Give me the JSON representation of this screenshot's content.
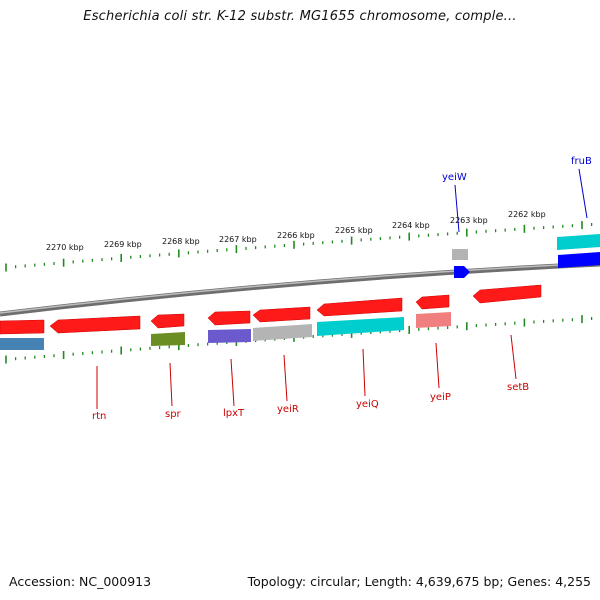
{
  "title": "Escherichia coli str. K-12 substr. MG1655 chromosome, comple...",
  "footer": {
    "accession": "Accession: NC_000913",
    "stats": "Topology: circular; Length: 4,639,675 bp; Genes: 4,255"
  },
  "scale_ticks": [
    "2270 kbp",
    "2269 kbp",
    "2268 kbp",
    "2267 kbp",
    "2266 kbp",
    "2265 kbp",
    "2264 kbp",
    "2263 kbp",
    "2262 kbp"
  ],
  "gene_labels": [
    "yeiW",
    "fruB",
    "rtn",
    "spr",
    "lpxT",
    "yeiR",
    "yeiQ",
    "yeiP",
    "setB"
  ],
  "colors": {
    "backbone": "#808080",
    "tick": "#228b22",
    "cds": "#ff0000",
    "cds_label": "#cc0000",
    "forward_label": "#0000cc",
    "steelblue": "#4682b4",
    "olive": "#6b8e23",
    "slateblue": "#6a5acd",
    "silver": "#b4b4b4",
    "teal": "#00cdcd",
    "salmon": "#f08080",
    "blue": "#0000ff"
  }
}
